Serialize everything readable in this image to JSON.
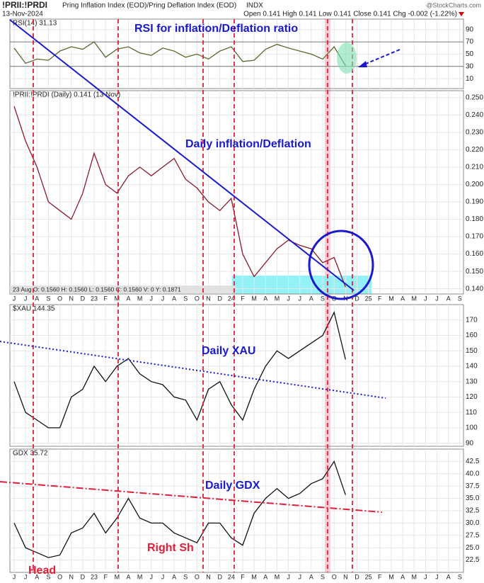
{
  "header": {
    "symbol": "!PRII:!PRDI",
    "description": "Pring Inflation Index (EOD)/Pring Deflation Index (EOD)",
    "exchange": "INDX",
    "date": "13-Nov-2024",
    "quote": "Open 0.141  High 0.141  Low 0.141  Close 0.141  Chg -0.002 (-1.22%)",
    "source": "@StockCharts.com"
  },
  "chart_data": [
    {
      "type": "line",
      "title": "RSI(14) 31.13",
      "color": "#556b2f",
      "ylim": [
        -6,
        107
      ],
      "yticks": [
        10,
        30,
        50,
        70,
        90
      ],
      "guides": [
        30,
        70
      ],
      "annotations": [
        "RSI for inflation/Deflation ratio"
      ],
      "values": [
        60,
        35,
        42,
        40,
        55,
        62,
        58,
        70,
        45,
        58,
        62,
        52,
        48,
        60,
        55,
        45,
        50,
        42,
        55,
        62,
        38,
        40,
        58,
        66,
        60,
        55,
        50,
        42,
        62,
        31.13,
        null,
        null,
        null,
        null,
        null,
        null,
        null,
        null,
        null,
        null
      ]
    },
    {
      "type": "line",
      "title": "!PRII:!PRDI (Daily) 0.141 (13 Nov)",
      "color": "#8b1a2a",
      "ylim": [
        0.137,
        0.254
      ],
      "yticks": [
        {
          "value": 0.14,
          "label": "0.140"
        },
        {
          "value": 0.15,
          "label": "0.150"
        },
        {
          "value": 0.16,
          "label": "0.160"
        },
        {
          "value": 0.17,
          "label": "0.170"
        },
        {
          "value": 0.18,
          "label": "0.180"
        },
        {
          "value": 0.19,
          "label": "0.190"
        },
        {
          "value": 0.2,
          "label": "0.200"
        },
        {
          "value": 0.21,
          "label": "0.210"
        },
        {
          "value": 0.22,
          "label": "0.220"
        },
        {
          "value": 0.23,
          "label": "0.230"
        },
        {
          "value": 0.24,
          "label": "0.240"
        },
        {
          "value": 0.25,
          "label": "0.250"
        }
      ],
      "annotations": [
        "Daily inflation/Deflation"
      ],
      "data_window": "23 Aug O: 0.1560  H: 0.1560  L: 0.1560  C: 0.1560  V: 0  Y: 0.1871",
      "x": [
        "J",
        "J",
        "A",
        "S",
        "O",
        "N",
        "D",
        "23",
        "F",
        "M",
        "A",
        "M",
        "J",
        "J",
        "A",
        "S",
        "O",
        "N",
        "D",
        "24",
        "F",
        "M",
        "A",
        "M",
        "J",
        "J",
        "A",
        "S",
        "O",
        "N",
        "D",
        "25",
        "F",
        "M",
        "A",
        "M",
        "J",
        "J",
        "A",
        "S"
      ],
      "values": [
        0.245,
        0.225,
        0.21,
        0.19,
        0.185,
        0.18,
        0.195,
        0.218,
        0.2,
        0.195,
        0.205,
        0.21,
        0.205,
        0.21,
        0.215,
        0.203,
        0.198,
        0.19,
        0.185,
        0.192,
        0.16,
        0.147,
        0.155,
        0.163,
        0.168,
        0.165,
        0.163,
        0.155,
        0.158,
        0.141,
        null,
        null,
        null,
        null,
        null,
        null,
        null,
        null,
        null,
        null
      ]
    },
    {
      "type": "line",
      "title": "$XAU 144.35",
      "color": "#111111",
      "ylim": [
        88,
        180
      ],
      "yticks": [
        90,
        100,
        110,
        120,
        130,
        140,
        150,
        160,
        170
      ],
      "annotations": [
        "Daily XAU"
      ],
      "values": [
        130,
        110,
        105,
        100,
        100,
        120,
        125,
        140,
        130,
        140,
        145,
        135,
        130,
        128,
        120,
        118,
        105,
        125,
        130,
        115,
        105,
        125,
        140,
        150,
        145,
        150,
        155,
        160,
        175,
        144.35,
        null,
        null,
        null,
        null,
        null,
        null,
        null,
        null,
        null,
        null
      ]
    },
    {
      "type": "line",
      "title": "GDX 35.72",
      "color": "#111111",
      "ylim": [
        20,
        45
      ],
      "yticks": [
        {
          "value": 22.5,
          "label": "22.5"
        },
        {
          "value": 25,
          "label": "25.0"
        },
        {
          "value": 27.5,
          "label": "27.5"
        },
        {
          "value": 30,
          "label": "30.0"
        },
        {
          "value": 32.5,
          "label": "32.5"
        },
        {
          "value": 35,
          "label": "35.0"
        },
        {
          "value": 37.5,
          "label": "37.5"
        },
        {
          "value": 40,
          "label": "40.0"
        },
        {
          "value": 42.5,
          "label": "42.5"
        }
      ],
      "annotations": [
        "Daily GDX",
        "Right Sh",
        "Head"
      ],
      "x": [
        "J",
        "J",
        "A",
        "S",
        "O",
        "N",
        "D",
        "23",
        "F",
        "M",
        "A",
        "M",
        "J",
        "J",
        "A",
        "S",
        "O",
        "N",
        "D",
        "24",
        "F",
        "M",
        "A",
        "M",
        "J",
        "J",
        "A",
        "S",
        "O",
        "N",
        "D",
        "25",
        "F",
        "M",
        "A",
        "M",
        "J",
        "J",
        "A",
        "S"
      ],
      "values": [
        30,
        25,
        24,
        23,
        23.5,
        28,
        29,
        32,
        28,
        31,
        35,
        31,
        30,
        30,
        28,
        27,
        26,
        30,
        30,
        27,
        25.5,
        32,
        35,
        37,
        35,
        36,
        38,
        39,
        42.5,
        35.72,
        null,
        null,
        null,
        null,
        null,
        null,
        null,
        null,
        null,
        null
      ]
    }
  ]
}
